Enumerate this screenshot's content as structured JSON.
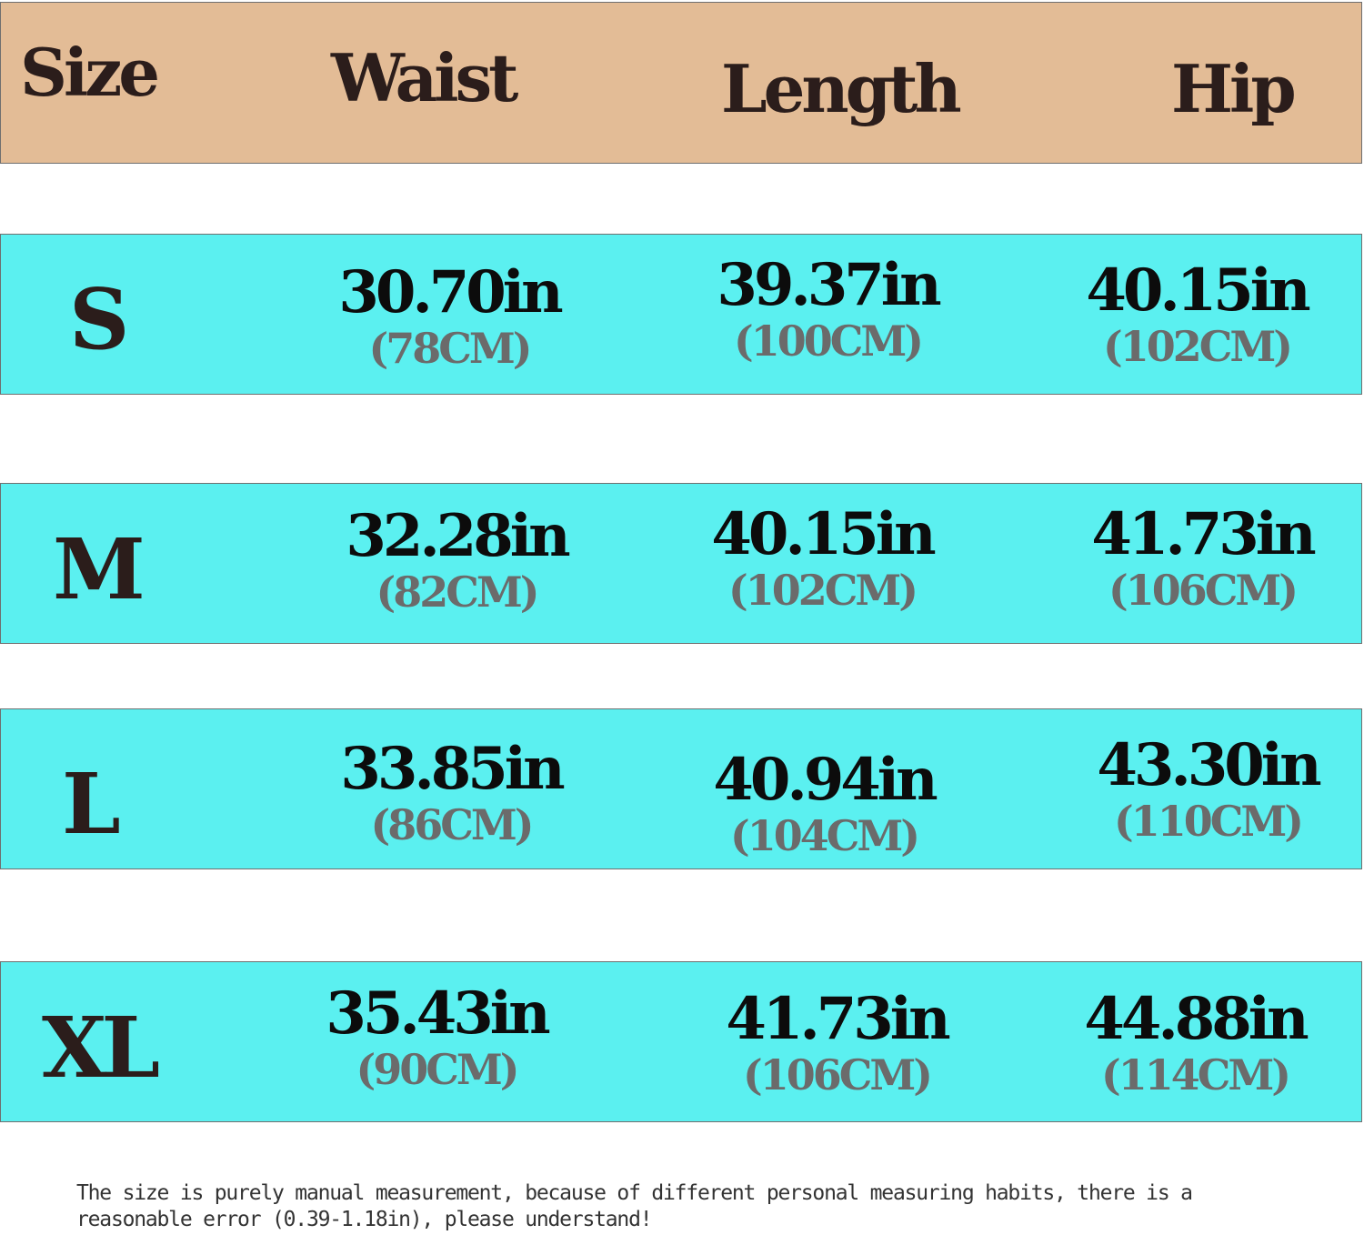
{
  "colors": {
    "header_background": "#e3bc96",
    "row_background": "#5bf0f0",
    "row_border": "#6f6f6f"
  },
  "header": {
    "size": "Size",
    "waist": "Waist",
    "length": "Length",
    "hip": "Hip"
  },
  "rows": [
    {
      "size": "S",
      "waist": {
        "in": "30.70in",
        "cm": "(78CM)"
      },
      "length": {
        "in": "39.37in",
        "cm": "(100CM)"
      },
      "hip": {
        "in": "40.15in",
        "cm": "(102CM)"
      }
    },
    {
      "size": "M",
      "waist": {
        "in": "32.28in",
        "cm": "(82CM)"
      },
      "length": {
        "in": "40.15in",
        "cm": "(102CM)"
      },
      "hip": {
        "in": "41.73in",
        "cm": "(106CM)"
      }
    },
    {
      "size": "L",
      "waist": {
        "in": "33.85in",
        "cm": "(86CM)"
      },
      "length": {
        "in": "40.94in",
        "cm": "(104CM)"
      },
      "hip": {
        "in": "43.30in",
        "cm": "(110CM)"
      }
    },
    {
      "size": "XL",
      "waist": {
        "in": "35.43in",
        "cm": "(90CM)"
      },
      "length": {
        "in": "41.73in",
        "cm": "(106CM)"
      },
      "hip": {
        "in": "44.88in",
        "cm": "(114CM)"
      }
    }
  ],
  "note": "The size is purely manual measurement, because of different personal measuring habits, there is a reasonable error (0.39-1.18in), please understand!"
}
